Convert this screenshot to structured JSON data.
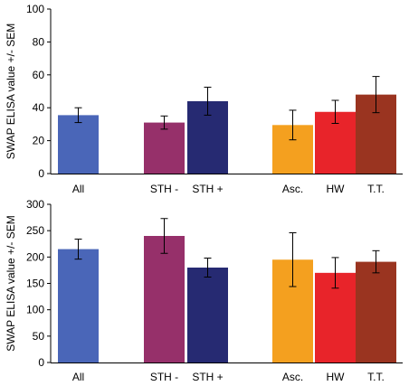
{
  "chart_data": [
    {
      "type": "bar",
      "title": "",
      "xlabel": "",
      "ylabel": "SWAP ELISA value +/- SEM",
      "ylim": [
        0,
        100
      ],
      "yticks": [
        0,
        20,
        40,
        60,
        80,
        100
      ],
      "categories": [
        "All",
        "STH -",
        "STH +",
        "Asc.",
        "HW",
        "T.T."
      ],
      "values": [
        35.5,
        31,
        44,
        29.5,
        37.5,
        48
      ],
      "error": [
        4.5,
        4,
        8.5,
        9,
        7,
        11
      ],
      "colors": [
        "#4a66b8",
        "#96306a",
        "#262a72",
        "#f4a01f",
        "#e8242a",
        "#9a3420"
      ],
      "grid": false,
      "legend": "none"
    },
    {
      "type": "bar",
      "title": "",
      "xlabel": "",
      "ylabel": "SWAP ELISA value +/- SEM",
      "ylim": [
        0,
        300
      ],
      "yticks": [
        0,
        50,
        100,
        150,
        200,
        250,
        300
      ],
      "categories": [
        "All",
        "STH -",
        "STH +",
        "Asc.",
        "HW",
        "T.T."
      ],
      "values": [
        215,
        240,
        180,
        195,
        170,
        191
      ],
      "error": [
        19,
        33,
        18,
        51,
        29,
        21
      ],
      "colors": [
        "#4a66b8",
        "#96306a",
        "#262a72",
        "#f4a01f",
        "#e8242a",
        "#9a3420"
      ],
      "grid": false,
      "legend": "none"
    }
  ]
}
